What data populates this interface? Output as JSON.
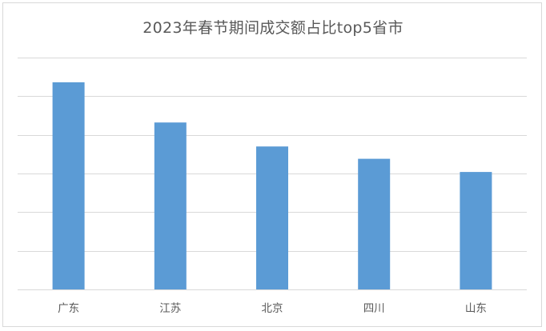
{
  "chart_data": {
    "type": "bar",
    "title": "2023年春节期间成交额占比top5省市",
    "categories": [
      "广东",
      "江苏",
      "北京",
      "四川",
      "山东"
    ],
    "values": [
      26.8,
      21.6,
      18.5,
      16.9,
      15.2
    ],
    "ylim": [
      0,
      30
    ],
    "grid": true,
    "gridlines": 6,
    "y_tick_labels_shown": false,
    "legend": "none",
    "bar_color": "#5b9bd5",
    "grid_color": "#d9d9d9"
  }
}
